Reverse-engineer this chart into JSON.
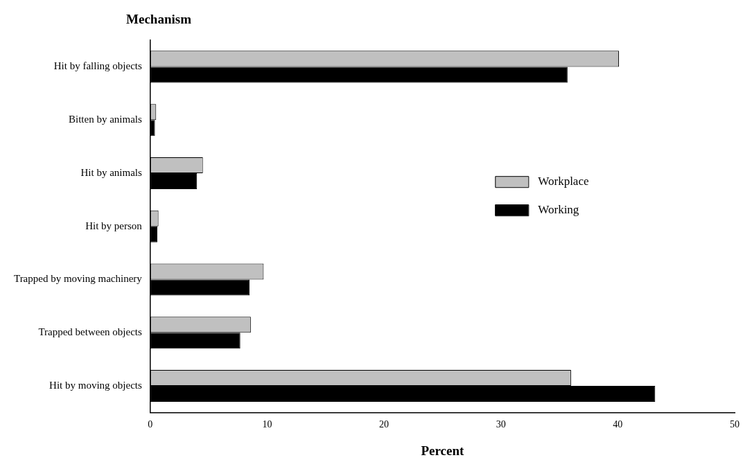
{
  "chart_data": {
    "type": "bar",
    "orientation": "horizontal",
    "ylabel": "Mechanism",
    "xlabel": "Percent",
    "categories": [
      "Hit by falling objects",
      "Bitten by animals",
      "Hit by animals",
      "Hit by person",
      "Trapped by moving machinery",
      "Trapped between objects",
      "Hit by moving objects"
    ],
    "series": [
      {
        "name": "Workplace",
        "color": "#c0c0c0",
        "values": [
          40.1,
          0.5,
          4.5,
          0.7,
          9.7,
          8.6,
          36.0
        ]
      },
      {
        "name": "Working",
        "color": "#000000",
        "values": [
          35.7,
          0.4,
          4.0,
          0.6,
          8.5,
          7.7,
          43.2
        ]
      }
    ],
    "xlim": [
      0,
      50
    ],
    "xticks": [
      0,
      10,
      20,
      30,
      40,
      50
    ],
    "grid": false,
    "legend": "right"
  }
}
